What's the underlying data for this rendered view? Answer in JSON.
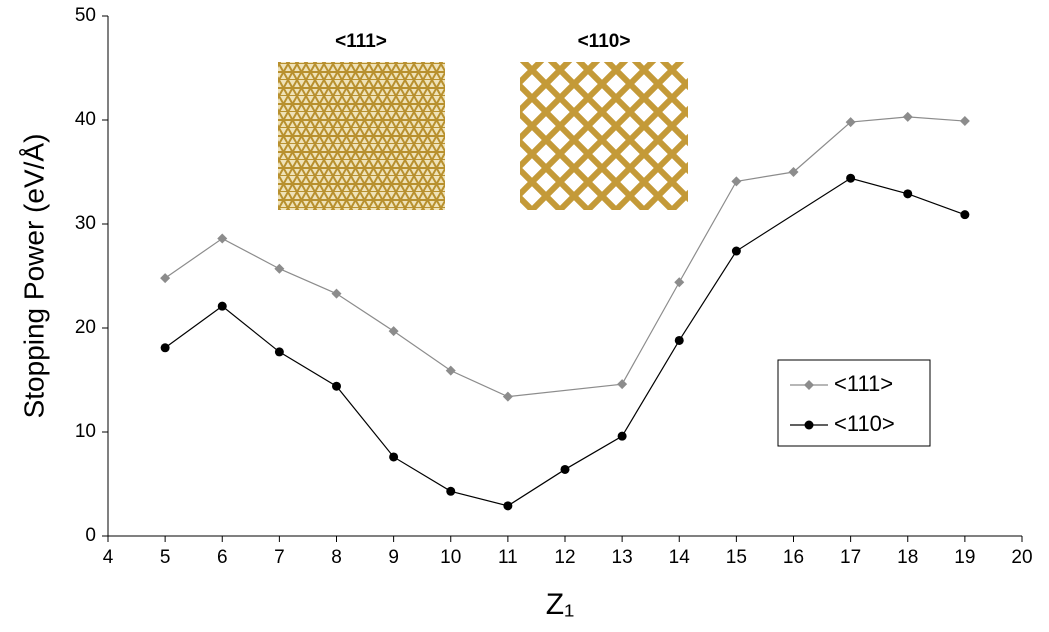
{
  "chart_data": {
    "type": "line",
    "xlabel": "Z₁",
    "ylabel": "Stopping Power (eV/Å)",
    "xlim": [
      4,
      20
    ],
    "xticks": [
      4,
      5,
      6,
      7,
      8,
      9,
      10,
      11,
      12,
      13,
      14,
      15,
      16,
      17,
      18,
      19,
      20
    ],
    "ylim": [
      0,
      50
    ],
    "yticks": [
      0,
      10,
      20,
      30,
      40,
      50
    ],
    "grid": false,
    "legend": "right",
    "annotations": [
      "<111>",
      "<110>"
    ],
    "series": [
      {
        "name": "<111>",
        "color": "#8c8c8c",
        "marker": "diamond",
        "x": [
          5,
          6,
          7,
          8,
          9,
          10,
          11,
          13,
          14,
          15,
          16,
          17,
          18,
          19
        ],
        "values": [
          24.8,
          28.6,
          25.7,
          23.3,
          19.7,
          15.9,
          13.4,
          14.6,
          24.4,
          34.1,
          35.0,
          39.8,
          40.3,
          39.9
        ]
      },
      {
        "name": "<110>",
        "color": "#000000",
        "marker": "circle",
        "x": [
          5,
          6,
          7,
          8,
          9,
          10,
          11,
          12,
          13,
          14,
          15,
          17,
          18,
          19
        ],
        "values": [
          18.1,
          22.1,
          17.7,
          14.4,
          7.6,
          4.3,
          2.9,
          6.4,
          9.6,
          18.8,
          27.4,
          34.4,
          32.9,
          30.9
        ]
      }
    ]
  }
}
